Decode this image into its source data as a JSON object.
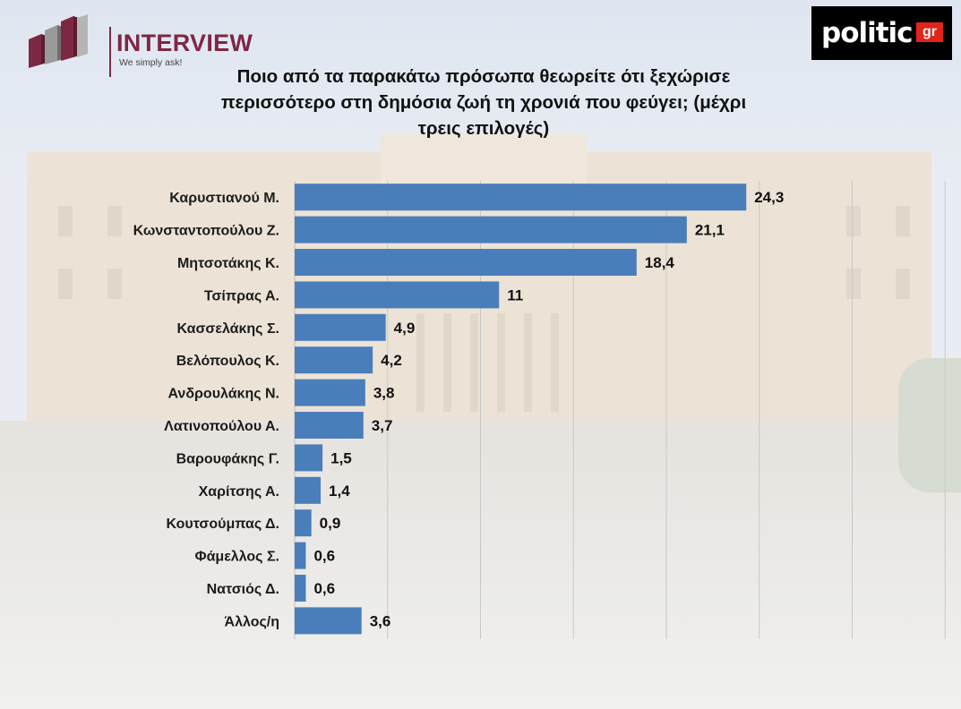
{
  "header": {
    "brand_left": {
      "title": "INTERVIEW",
      "tagline": "We simply ask!"
    },
    "brand_right": {
      "word": "politic",
      "suffix": "gr"
    },
    "title_lines": [
      "Ποιο από τα παρακάτω πρόσωπα θεωρείτε ότι ξεχώρισε",
      "περισσότερο στη δημόσια ζωή τη χρονιά που φεύγει; (μέχρι",
      "τρεις επιλογές)"
    ]
  },
  "chart_data": {
    "type": "bar",
    "orientation": "horizontal",
    "title": "Ποιο από τα παρακάτω πρόσωπα θεωρείτε ότι ξεχώρισε περισσότερο στη δημόσια ζωή τη χρονιά που φεύγει; (μέχρι τρεις επιλογές)",
    "categories": [
      "Καρυστιανού Μ.",
      "Κωνσταντοπούλου Ζ.",
      "Μητσοτάκης Κ.",
      "Τσίπρας Α.",
      "Κασσελάκης Σ.",
      "Βελόπουλος Κ.",
      "Ανδρουλάκης Ν.",
      "Λατινοπούλου Α.",
      "Βαρουφάκης Γ.",
      "Χαρίτσης Α.",
      "Κουτσούμπας Δ.",
      "Φάμελλος Σ.",
      "Νατσιός Δ.",
      "Άλλος/η"
    ],
    "values": [
      24.3,
      21.1,
      18.4,
      11,
      4.9,
      4.2,
      3.8,
      3.7,
      1.5,
      1.4,
      0.9,
      0.6,
      0.6,
      3.6
    ],
    "value_labels": [
      "24,3",
      "21,1",
      "18,4",
      "11",
      "4,9",
      "4,2",
      "3,8",
      "3,7",
      "1,5",
      "1,4",
      "0,9",
      "0,6",
      "0,6",
      "3,6"
    ],
    "xlim": [
      0,
      35
    ],
    "grid": true,
    "bar_color": "#4a7ebb",
    "gridline_color": "#c8c8c8"
  }
}
